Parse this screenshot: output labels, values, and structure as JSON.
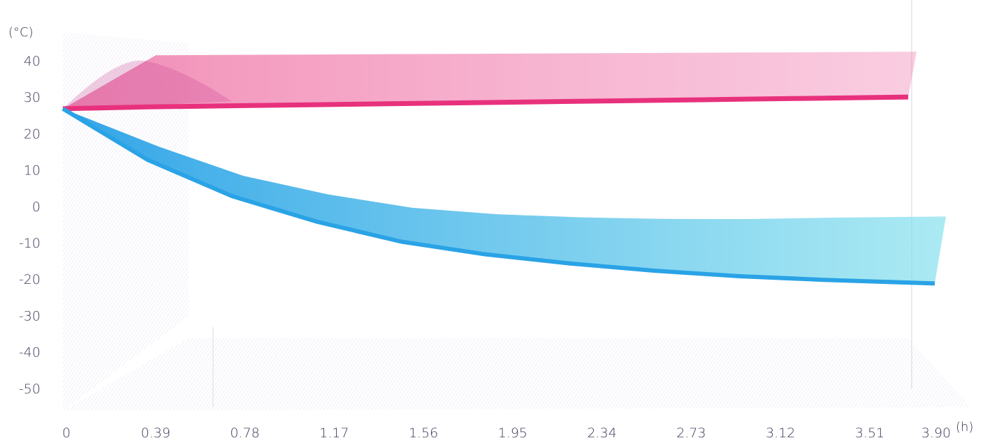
{
  "chart_data": {
    "type": "area",
    "y_unit": "(°C)",
    "x_unit": "(h)",
    "y_ticks": [
      40,
      30,
      20,
      10,
      0,
      -10,
      -20,
      -30,
      -40,
      -50
    ],
    "x_ticks": [
      "0",
      "0.39",
      "0.78",
      "1.17",
      "1.56",
      "1.95",
      "2.34",
      "2.73",
      "3.12",
      "3.51",
      "3.90"
    ],
    "ylim": [
      -55,
      45
    ],
    "xlim": [
      0,
      3.9
    ],
    "grid": false,
    "legend": "none",
    "colors": {
      "hot": "#e8317c",
      "cold": "#2aa3e6",
      "backdrop": "#c8c0e0"
    },
    "series": [
      {
        "color": "#e8317c",
        "x": [
          0,
          0.39,
          0.78,
          1.17,
          1.56,
          1.95,
          2.34,
          2.73,
          3.12,
          3.51,
          3.9
        ],
        "values": [
          27,
          27.5,
          27.8,
          28.1,
          28.4,
          28.7,
          29,
          29.3,
          29.6,
          29.9,
          30.2
        ]
      },
      {
        "color": "#2aa3e6",
        "x": [
          0,
          0.39,
          0.78,
          1.17,
          1.56,
          1.95,
          2.34,
          2.73,
          3.12,
          3.51,
          3.9
        ],
        "values": [
          27,
          13,
          3,
          -4,
          -9.5,
          -13,
          -15.5,
          -17.5,
          -19,
          -20,
          -21
        ]
      }
    ]
  }
}
